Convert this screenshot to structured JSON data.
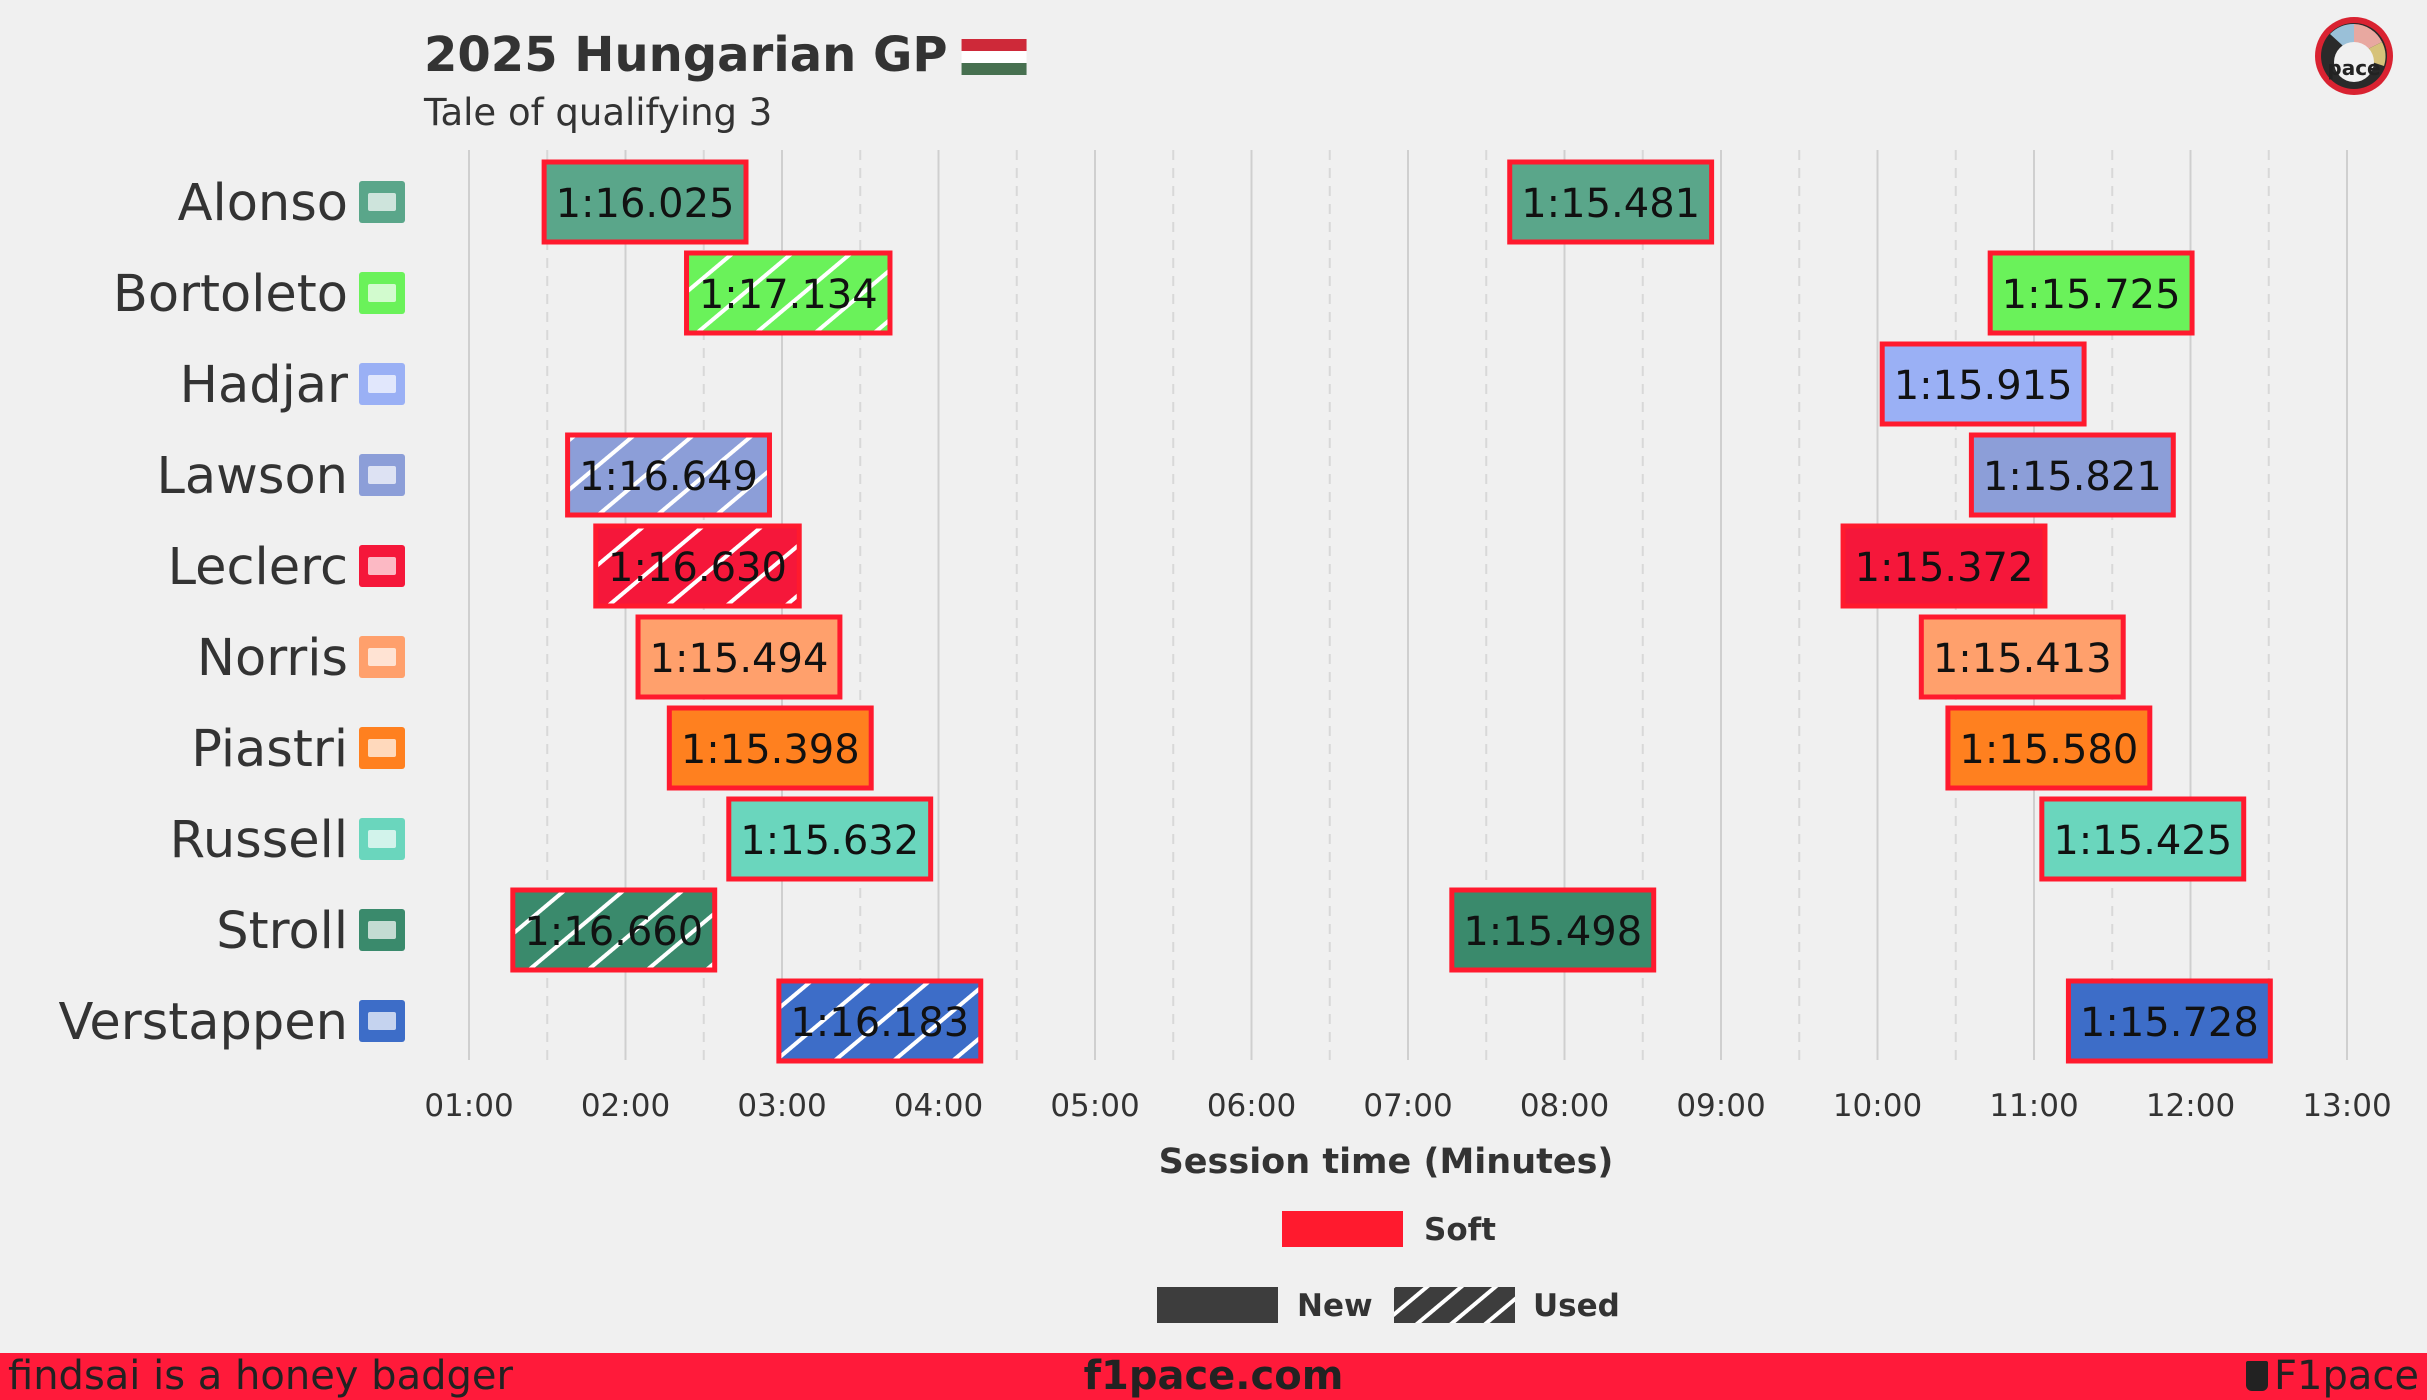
{
  "header": {
    "title": "2025 Hungarian GP",
    "subtitle": "Tale of qualifying 3",
    "flag_colors": [
      "#ce2939",
      "#ffffff",
      "#477050"
    ]
  },
  "logo": {
    "icon": "pace-logo-icon",
    "text": "pace"
  },
  "chart_data": {
    "type": "bar",
    "subtype": "gantt",
    "title": "2025 Hungarian GP",
    "subtitle": "Tale of qualifying 3",
    "xlabel": "Session time (Minutes)",
    "ylabel": "",
    "xlim": [
      0.7,
      13.3
    ],
    "xticks": [
      {
        "value": 1,
        "label": "01:00"
      },
      {
        "value": 2,
        "label": "02:00"
      },
      {
        "value": 3,
        "label": "03:00"
      },
      {
        "value": 4,
        "label": "04:00"
      },
      {
        "value": 5,
        "label": "05:00"
      },
      {
        "value": 6,
        "label": "06:00"
      },
      {
        "value": 7,
        "label": "07:00"
      },
      {
        "value": 8,
        "label": "08:00"
      },
      {
        "value": 9,
        "label": "09:00"
      },
      {
        "value": 10,
        "label": "10:00"
      },
      {
        "value": 11,
        "label": "11:00"
      },
      {
        "value": 12,
        "label": "12:00"
      },
      {
        "value": 13,
        "label": "13:00"
      }
    ],
    "grid": true,
    "legend": {
      "position": "bottom-center",
      "compound": [
        {
          "label": "Soft",
          "color": "#ff1a2e"
        }
      ],
      "tyre_age": [
        {
          "label": "New"
        },
        {
          "label": "Used"
        }
      ]
    },
    "drivers": [
      {
        "name": "Alonso",
        "team_color": "#5aa68a",
        "team_icon": "aston-martin-icon",
        "laps": [
          {
            "start": 1.48,
            "end": 2.77,
            "time": "1:16.025",
            "compound": "Soft",
            "used": false
          },
          {
            "start": 7.65,
            "end": 8.94,
            "time": "1:15.481",
            "compound": "Soft",
            "used": false
          }
        ]
      },
      {
        "name": "Bortoleto",
        "team_color": "#6af25a",
        "team_icon": "sauber-icon",
        "laps": [
          {
            "start": 2.39,
            "end": 3.69,
            "time": "1:17.134",
            "compound": "Soft",
            "used": true
          },
          {
            "start": 10.72,
            "end": 12.01,
            "time": "1:15.725",
            "compound": "Soft",
            "used": false
          }
        ]
      },
      {
        "name": "Hadjar",
        "team_color": "#9ab0f5",
        "team_icon": "racing-bulls-icon",
        "laps": [
          {
            "start": 10.03,
            "end": 11.32,
            "time": "1:15.915",
            "compound": "Soft",
            "used": false
          }
        ]
      },
      {
        "name": "Lawson",
        "team_color": "#8c9ed8",
        "team_icon": "racing-bulls-icon",
        "laps": [
          {
            "start": 1.63,
            "end": 2.92,
            "time": "1:16.649",
            "compound": "Soft",
            "used": true
          },
          {
            "start": 10.6,
            "end": 11.89,
            "time": "1:15.821",
            "compound": "Soft",
            "used": false
          }
        ]
      },
      {
        "name": "Leclerc",
        "team_color": "#f5173a",
        "team_icon": "ferrari-icon",
        "laps": [
          {
            "start": 1.81,
            "end": 3.11,
            "time": "1:16.630",
            "compound": "Soft",
            "used": true
          },
          {
            "start": 9.78,
            "end": 11.07,
            "time": "1:15.372",
            "compound": "Soft",
            "used": false
          }
        ]
      },
      {
        "name": "Norris",
        "team_color": "#ffa06c",
        "team_icon": "mclaren-icon",
        "laps": [
          {
            "start": 2.08,
            "end": 3.37,
            "time": "1:15.494",
            "compound": "Soft",
            "used": false
          },
          {
            "start": 10.28,
            "end": 11.57,
            "time": "1:15.413",
            "compound": "Soft",
            "used": false
          }
        ]
      },
      {
        "name": "Piastri",
        "team_color": "#ff801f",
        "team_icon": "mclaren-icon",
        "laps": [
          {
            "start": 2.28,
            "end": 3.57,
            "time": "1:15.398",
            "compound": "Soft",
            "used": false
          },
          {
            "start": 10.45,
            "end": 11.74,
            "time": "1:15.580",
            "compound": "Soft",
            "used": false
          }
        ]
      },
      {
        "name": "Russell",
        "team_color": "#6ad6bd",
        "team_icon": "mercedes-icon",
        "laps": [
          {
            "start": 2.66,
            "end": 3.95,
            "time": "1:15.632",
            "compound": "Soft",
            "used": false
          },
          {
            "start": 11.05,
            "end": 12.34,
            "time": "1:15.425",
            "compound": "Soft",
            "used": false
          }
        ]
      },
      {
        "name": "Stroll",
        "team_color": "#3a8a6c",
        "team_icon": "aston-martin-icon",
        "laps": [
          {
            "start": 1.28,
            "end": 2.57,
            "time": "1:16.660",
            "compound": "Soft",
            "used": true
          },
          {
            "start": 7.28,
            "end": 8.57,
            "time": "1:15.498",
            "compound": "Soft",
            "used": false
          }
        ]
      },
      {
        "name": "Verstappen",
        "team_color": "#3d6dc8",
        "team_icon": "red-bull-icon",
        "laps": [
          {
            "start": 2.98,
            "end": 4.27,
            "time": "1:16.183",
            "compound": "Soft",
            "used": true
          },
          {
            "start": 11.22,
            "end": 12.51,
            "time": "1:15.728",
            "compound": "Soft",
            "used": false
          }
        ]
      }
    ]
  },
  "footer": {
    "left": "findsai is a honey badger",
    "center": "f1pace.com",
    "right": "F1pace",
    "right_icon": "cup-icon"
  }
}
